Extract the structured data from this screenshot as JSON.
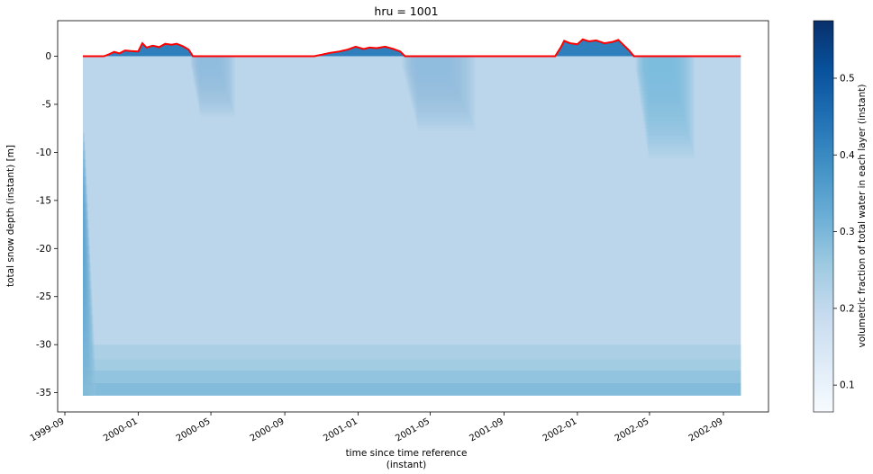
{
  "chart_data": {
    "type": "heatmap",
    "title": "hru = 1001",
    "xlabel": "time since time reference",
    "xlabel_sub": "(instant)",
    "ylabel": "total snow depth (instant) [m]",
    "colorbar_label": "volumetric fraction of total water in each layer (instant)",
    "colormap": [
      "#f7fbff",
      "#deebf7",
      "#c6dbef",
      "#9ecae1",
      "#6baed6",
      "#4292c6",
      "#2171b5",
      "#08519c",
      "#08306b"
    ],
    "x_tick_labels": [
      "1999-09",
      "2000-01",
      "2000-05",
      "2000-09",
      "2001-01",
      "2001-05",
      "2001-09",
      "2002-01",
      "2002-05",
      "2002-09"
    ],
    "x_range": [
      "1999-08-20",
      "2002-11-15"
    ],
    "y_ticks": [
      0,
      -5,
      -10,
      -15,
      -20,
      -25,
      -30,
      -35
    ],
    "y_range": [
      -37.0,
      3.7
    ],
    "colorbar_ticks": [
      0.1,
      0.2,
      0.3,
      0.4,
      0.5
    ],
    "colorbar_range": [
      0.065,
      0.575
    ],
    "data_time_range": [
      "1999-10-01",
      "2002-09-30"
    ],
    "data_depth_range": [
      -35.3,
      0
    ],
    "background_fraction": 0.21,
    "deep_layer_fractions": [
      {
        "top": -30.0,
        "bottom": -31.5,
        "value": 0.235
      },
      {
        "top": -31.5,
        "bottom": -32.7,
        "value": 0.25
      },
      {
        "top": -32.7,
        "bottom": -34.0,
        "value": 0.27
      },
      {
        "top": -34.0,
        "bottom": -35.3,
        "value": 0.29
      }
    ],
    "early_wetting_fraction": 0.38,
    "melt_plumes": [
      {
        "start": "2000-03-28",
        "end": "2000-04-25",
        "max_depth": -6.5,
        "value": 0.28
      },
      {
        "start": "2001-03-15",
        "end": "2001-04-30",
        "max_depth": -8.0,
        "value": 0.28
      },
      {
        "start": "2002-04-08",
        "end": "2002-05-15",
        "max_depth": -11.0,
        "value": 0.3
      }
    ],
    "snow_depth_series": {
      "name": "snow depth",
      "color": "#ff0000",
      "points": [
        [
          "1999-10-01",
          0.0
        ],
        [
          "1999-11-05",
          0.0
        ],
        [
          "1999-11-15",
          0.25
        ],
        [
          "1999-11-22",
          0.45
        ],
        [
          "1999-12-01",
          0.3
        ],
        [
          "1999-12-10",
          0.6
        ],
        [
          "1999-12-20",
          0.55
        ],
        [
          "2000-01-01",
          0.5
        ],
        [
          "2000-01-08",
          1.35
        ],
        [
          "2000-01-15",
          0.9
        ],
        [
          "2000-01-25",
          1.1
        ],
        [
          "2000-02-05",
          0.95
        ],
        [
          "2000-02-15",
          1.3
        ],
        [
          "2000-02-25",
          1.2
        ],
        [
          "2000-03-05",
          1.3
        ],
        [
          "2000-03-15",
          1.05
        ],
        [
          "2000-03-25",
          0.7
        ],
        [
          "2000-04-01",
          0.0
        ],
        [
          "2000-10-20",
          0.0
        ],
        [
          "2000-11-01",
          0.15
        ],
        [
          "2000-11-15",
          0.35
        ],
        [
          "2000-12-01",
          0.5
        ],
        [
          "2000-12-15",
          0.7
        ],
        [
          "2000-12-28",
          1.0
        ],
        [
          "2001-01-10",
          0.75
        ],
        [
          "2001-01-20",
          0.9
        ],
        [
          "2001-02-01",
          0.85
        ],
        [
          "2001-02-15",
          1.0
        ],
        [
          "2001-03-01",
          0.75
        ],
        [
          "2001-03-12",
          0.5
        ],
        [
          "2001-03-20",
          0.0
        ],
        [
          "2001-11-25",
          0.0
        ],
        [
          "2001-12-05",
          1.0
        ],
        [
          "2001-12-10",
          1.6
        ],
        [
          "2001-12-20",
          1.35
        ],
        [
          "2002-01-01",
          1.25
        ],
        [
          "2002-01-10",
          1.75
        ],
        [
          "2002-01-20",
          1.55
        ],
        [
          "2002-02-01",
          1.65
        ],
        [
          "2002-02-15",
          1.35
        ],
        [
          "2002-03-01",
          1.5
        ],
        [
          "2002-03-10",
          1.7
        ],
        [
          "2002-03-20",
          1.1
        ],
        [
          "2002-03-28",
          0.6
        ],
        [
          "2002-04-05",
          0.0
        ],
        [
          "2002-09-30",
          0.0
        ]
      ]
    }
  }
}
